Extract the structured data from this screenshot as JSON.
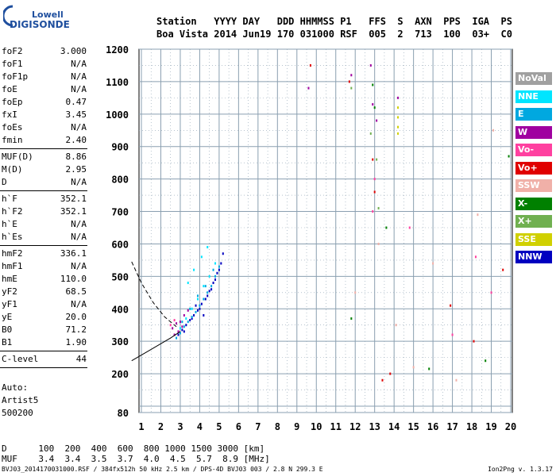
{
  "logo": {
    "top": "Lowell",
    "bottom": "DIGISONDE"
  },
  "header": {
    "line1": "Station   YYYY DAY   DDD HHMMSS P1   FFS  S  AXN  PPS  IGA  PS",
    "line2": "Boa Vista 2014 Jun19 170 031000 RSF  005  2  713  100  03+  C0"
  },
  "params": [
    {
      "name": "foF2",
      "value": "3.000"
    },
    {
      "name": "foF1",
      "value": "N/A"
    },
    {
      "name": "foF1p",
      "value": "N/A"
    },
    {
      "name": "foE",
      "value": "N/A"
    },
    {
      "name": "foEp",
      "value": "0.47"
    },
    {
      "name": "fxI",
      "value": "3.45"
    },
    {
      "name": "foEs",
      "value": "N/A"
    },
    {
      "name": "fmin",
      "value": "2.40"
    },
    {
      "name": "MUF(D)",
      "value": "8.86"
    },
    {
      "name": "M(D)",
      "value": "2.95"
    },
    {
      "name": "D",
      "value": "N/A"
    },
    {
      "name": "h`F",
      "value": "352.1"
    },
    {
      "name": "h`F2",
      "value": "352.1"
    },
    {
      "name": "h`E",
      "value": "N/A"
    },
    {
      "name": "h`Es",
      "value": "N/A"
    },
    {
      "name": "hmF2",
      "value": "336.1"
    },
    {
      "name": "hmF1",
      "value": "N/A"
    },
    {
      "name": "hmE",
      "value": "110.0"
    },
    {
      "name": "yF2",
      "value": "68.5"
    },
    {
      "name": "yF1",
      "value": "N/A"
    },
    {
      "name": "yE",
      "value": "20.0"
    },
    {
      "name": "B0",
      "value": "71.2"
    },
    {
      "name": "B1",
      "value": "1.90"
    },
    {
      "name": "C-level",
      "value": "44"
    }
  ],
  "autoscale": {
    "label": "Auto:",
    "artist": "Artist5",
    "code": "500200"
  },
  "legend": [
    {
      "label": "NoVal",
      "bg": "#a0a0a0",
      "fg": "#ffffff"
    },
    {
      "label": "NNE",
      "bg": "#00e5ff",
      "fg": "#ffffff"
    },
    {
      "label": "E",
      "bg": "#00a8e0",
      "fg": "#ffffff"
    },
    {
      "label": "W",
      "bg": "#a000a0",
      "fg": "#ffffff"
    },
    {
      "label": "Vo-",
      "bg": "#ff40a0",
      "fg": "#ffffff"
    },
    {
      "label": "Vo+",
      "bg": "#e00000",
      "fg": "#ffffff"
    },
    {
      "label": "SSW",
      "bg": "#f0b0a8",
      "fg": "#ffffff"
    },
    {
      "label": "X-",
      "bg": "#008000",
      "fg": "#ffffff"
    },
    {
      "label": "X+",
      "bg": "#70b050",
      "fg": "#ffffff"
    },
    {
      "label": "SSE",
      "bg": "#d0d000",
      "fg": "#ffffff"
    },
    {
      "label": "NNW",
      "bg": "#0000c0",
      "fg": "#ffffff"
    }
  ],
  "muf_table": {
    "d_row": "D      100  200  400  600  800 1000 1500 3000 [km]",
    "muf_row": "MUF    3.4  3.4  3.5  3.7  4.0  4.5  5.7  8.9 [MHz]"
  },
  "footer": "BVJ03_2014170031000.RSF / 384fx512h 50 kHz 2.5 km / DPS-4D BVJ03 003 / 2.8 N 299.3 E",
  "version": "Ion2Png v. 1.3.17",
  "chart_data": {
    "type": "scatter",
    "title": "",
    "xlabel": "",
    "ylabel": "",
    "xlim": [
      0.5,
      20
    ],
    "ylim": [
      80,
      1200
    ],
    "xticks": [
      1,
      2,
      3,
      4,
      5,
      6,
      7,
      8,
      9,
      10,
      11,
      12,
      13,
      14,
      15,
      16,
      17,
      18,
      19,
      20
    ],
    "yticks": [
      80,
      100,
      200,
      300,
      400,
      500,
      600,
      700,
      800,
      900,
      1000,
      1100,
      1200
    ],
    "ytick_labels": [
      "80",
      "",
      "200",
      "300",
      "400",
      "500",
      "600",
      "700",
      "800",
      "900",
      "1000",
      "1100",
      "1200"
    ],
    "grid": true,
    "grid_color": "#8a9fb0",
    "series": [
      {
        "polarization": "NNW",
        "color": "#0000c0",
        "x": [
          2.9,
          3.1,
          3.3,
          3.5,
          3.7,
          3.9,
          4.1,
          4.3,
          4.5,
          4.7,
          4.9,
          5.1,
          5.2,
          3.2,
          3.6,
          4.0,
          4.4,
          4.8,
          5.0,
          4.2,
          3.8,
          4.6
        ],
        "y": [
          320,
          335,
          350,
          365,
          380,
          395,
          415,
          430,
          455,
          480,
          510,
          540,
          570,
          330,
          370,
          400,
          440,
          490,
          520,
          380,
          410,
          460
        ]
      },
      {
        "polarization": "E",
        "color": "#00a8e0",
        "x": [
          2.8,
          3.0,
          3.2,
          3.4,
          3.6,
          3.8,
          4.0,
          4.2,
          4.4,
          4.6,
          4.8,
          5.0,
          3.1,
          3.5,
          3.9,
          4.3,
          4.7
        ],
        "y": [
          310,
          325,
          345,
          360,
          375,
          390,
          410,
          430,
          450,
          470,
          500,
          530,
          360,
          400,
          440,
          470,
          520
        ]
      },
      {
        "polarization": "NNE",
        "color": "#00e5ff",
        "x": [
          3.0,
          3.3,
          3.6,
          3.9,
          4.2,
          4.5,
          4.8,
          3.4,
          3.7,
          4.1,
          4.4
        ],
        "y": [
          340,
          370,
          400,
          430,
          470,
          500,
          540,
          480,
          520,
          560,
          590
        ]
      },
      {
        "polarization": "W",
        "color": "#a000a0",
        "x": [
          2.6,
          2.8,
          3.0,
          3.2,
          3.4,
          2.7,
          2.9,
          3.1,
          9.6,
          11.8,
          12.8,
          12.9,
          14.2,
          13.1
        ],
        "y": [
          340,
          355,
          360,
          380,
          395,
          320,
          330,
          345,
          1080,
          1120,
          1150,
          1030,
          1050,
          980
        ]
      },
      {
        "polarization": "Vo-",
        "color": "#ff40a0",
        "x": [
          2.5,
          2.7,
          12.9,
          13.0,
          14.8,
          18.2,
          19.0,
          17.0
        ],
        "y": [
          350,
          365,
          700,
          800,
          650,
          560,
          450,
          320
        ]
      },
      {
        "polarization": "Vo+",
        "color": "#e00000",
        "x": [
          11.7,
          12.9,
          13.0,
          13.4,
          13.8,
          16.9,
          18.1,
          19.6,
          9.7
        ],
        "y": [
          1100,
          860,
          760,
          180,
          200,
          410,
          300,
          520,
          1150
        ]
      },
      {
        "polarization": "SSW",
        "color": "#f0b0a8",
        "x": [
          12.0,
          13.2,
          14.1,
          15.0,
          16.0,
          17.2,
          18.3,
          19.1
        ],
        "y": [
          450,
          600,
          350,
          220,
          540,
          180,
          690,
          950
        ]
      },
      {
        "polarization": "X-",
        "color": "#008000",
        "x": [
          11.8,
          12.9,
          13.6,
          15.8,
          18.7,
          19.9,
          13.0
        ],
        "y": [
          370,
          1090,
          650,
          215,
          240,
          870,
          1020
        ]
      },
      {
        "polarization": "X+",
        "color": "#70b050",
        "x": [
          11.8,
          12.8,
          13.1,
          13.2
        ],
        "y": [
          1080,
          940,
          860,
          710
        ]
      },
      {
        "polarization": "SSE",
        "color": "#d0d000",
        "x": [
          14.2,
          14.2,
          14.2,
          14.2
        ],
        "y": [
          1020,
          990,
          960,
          940
        ]
      }
    ],
    "traces": [
      {
        "kind": "profile-solid",
        "x": [
          0.5,
          1.5,
          2.5,
          3.0
        ],
        "y": [
          240,
          275,
          310,
          330
        ]
      },
      {
        "kind": "profile-dashed",
        "x": [
          0.5,
          1.0,
          1.6,
          2.2,
          2.8
        ],
        "y": [
          545,
          480,
          420,
          375,
          345
        ]
      }
    ]
  }
}
